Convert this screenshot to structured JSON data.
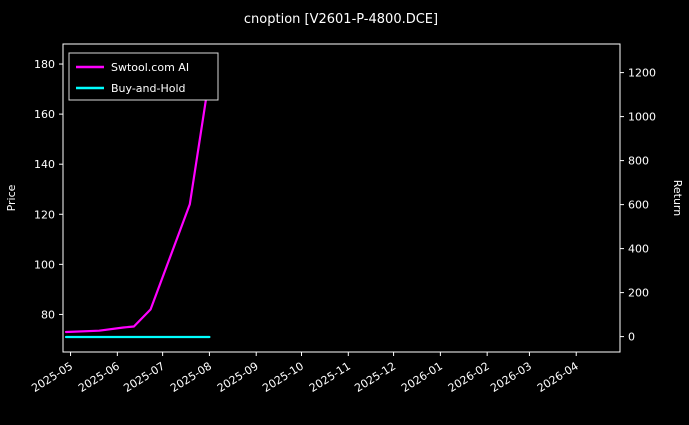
{
  "title": "cnoption [V2601-P-4800.DCE]",
  "chart_data": {
    "type": "line",
    "title": "cnoption [V2601-P-4800.DCE]",
    "background_color": "#000000",
    "text_color": "#ffffff",
    "grid": false,
    "legend_position": "upper left",
    "x_range": [
      "2025-04-26",
      "2026-04-30"
    ],
    "x_tick_labels": [
      "2025-05",
      "2025-06",
      "2025-07",
      "2025-08",
      "2025-09",
      "2025-10",
      "2025-11",
      "2025-12",
      "2026-01",
      "2026-02",
      "2026-03",
      "2026-04"
    ],
    "left_axis": {
      "label": "Price",
      "ticks": [
        80,
        100,
        120,
        140,
        160,
        180
      ],
      "range": [
        65,
        188
      ]
    },
    "right_axis": {
      "label": "Return",
      "ticks": [
        0,
        200,
        400,
        600,
        800,
        1000,
        1200
      ],
      "range": [
        -70,
        1330
      ]
    },
    "series": [
      {
        "name": "Swtool.com AI",
        "color": "#ff00ff",
        "axis": "left",
        "x": [
          "2025-04-28",
          "2025-05-20",
          "2025-06-05",
          "2025-06-12",
          "2025-06-23",
          "2025-07-19",
          "2025-07-30"
        ],
        "y": [
          73,
          73.5,
          74.8,
          75.2,
          82,
          124,
          167
        ]
      },
      {
        "name": "Buy-and-Hold",
        "color": "#00ffff",
        "axis": "left",
        "x": [
          "2025-04-28",
          "2025-08-01"
        ],
        "y": [
          71,
          71
        ]
      }
    ]
  }
}
